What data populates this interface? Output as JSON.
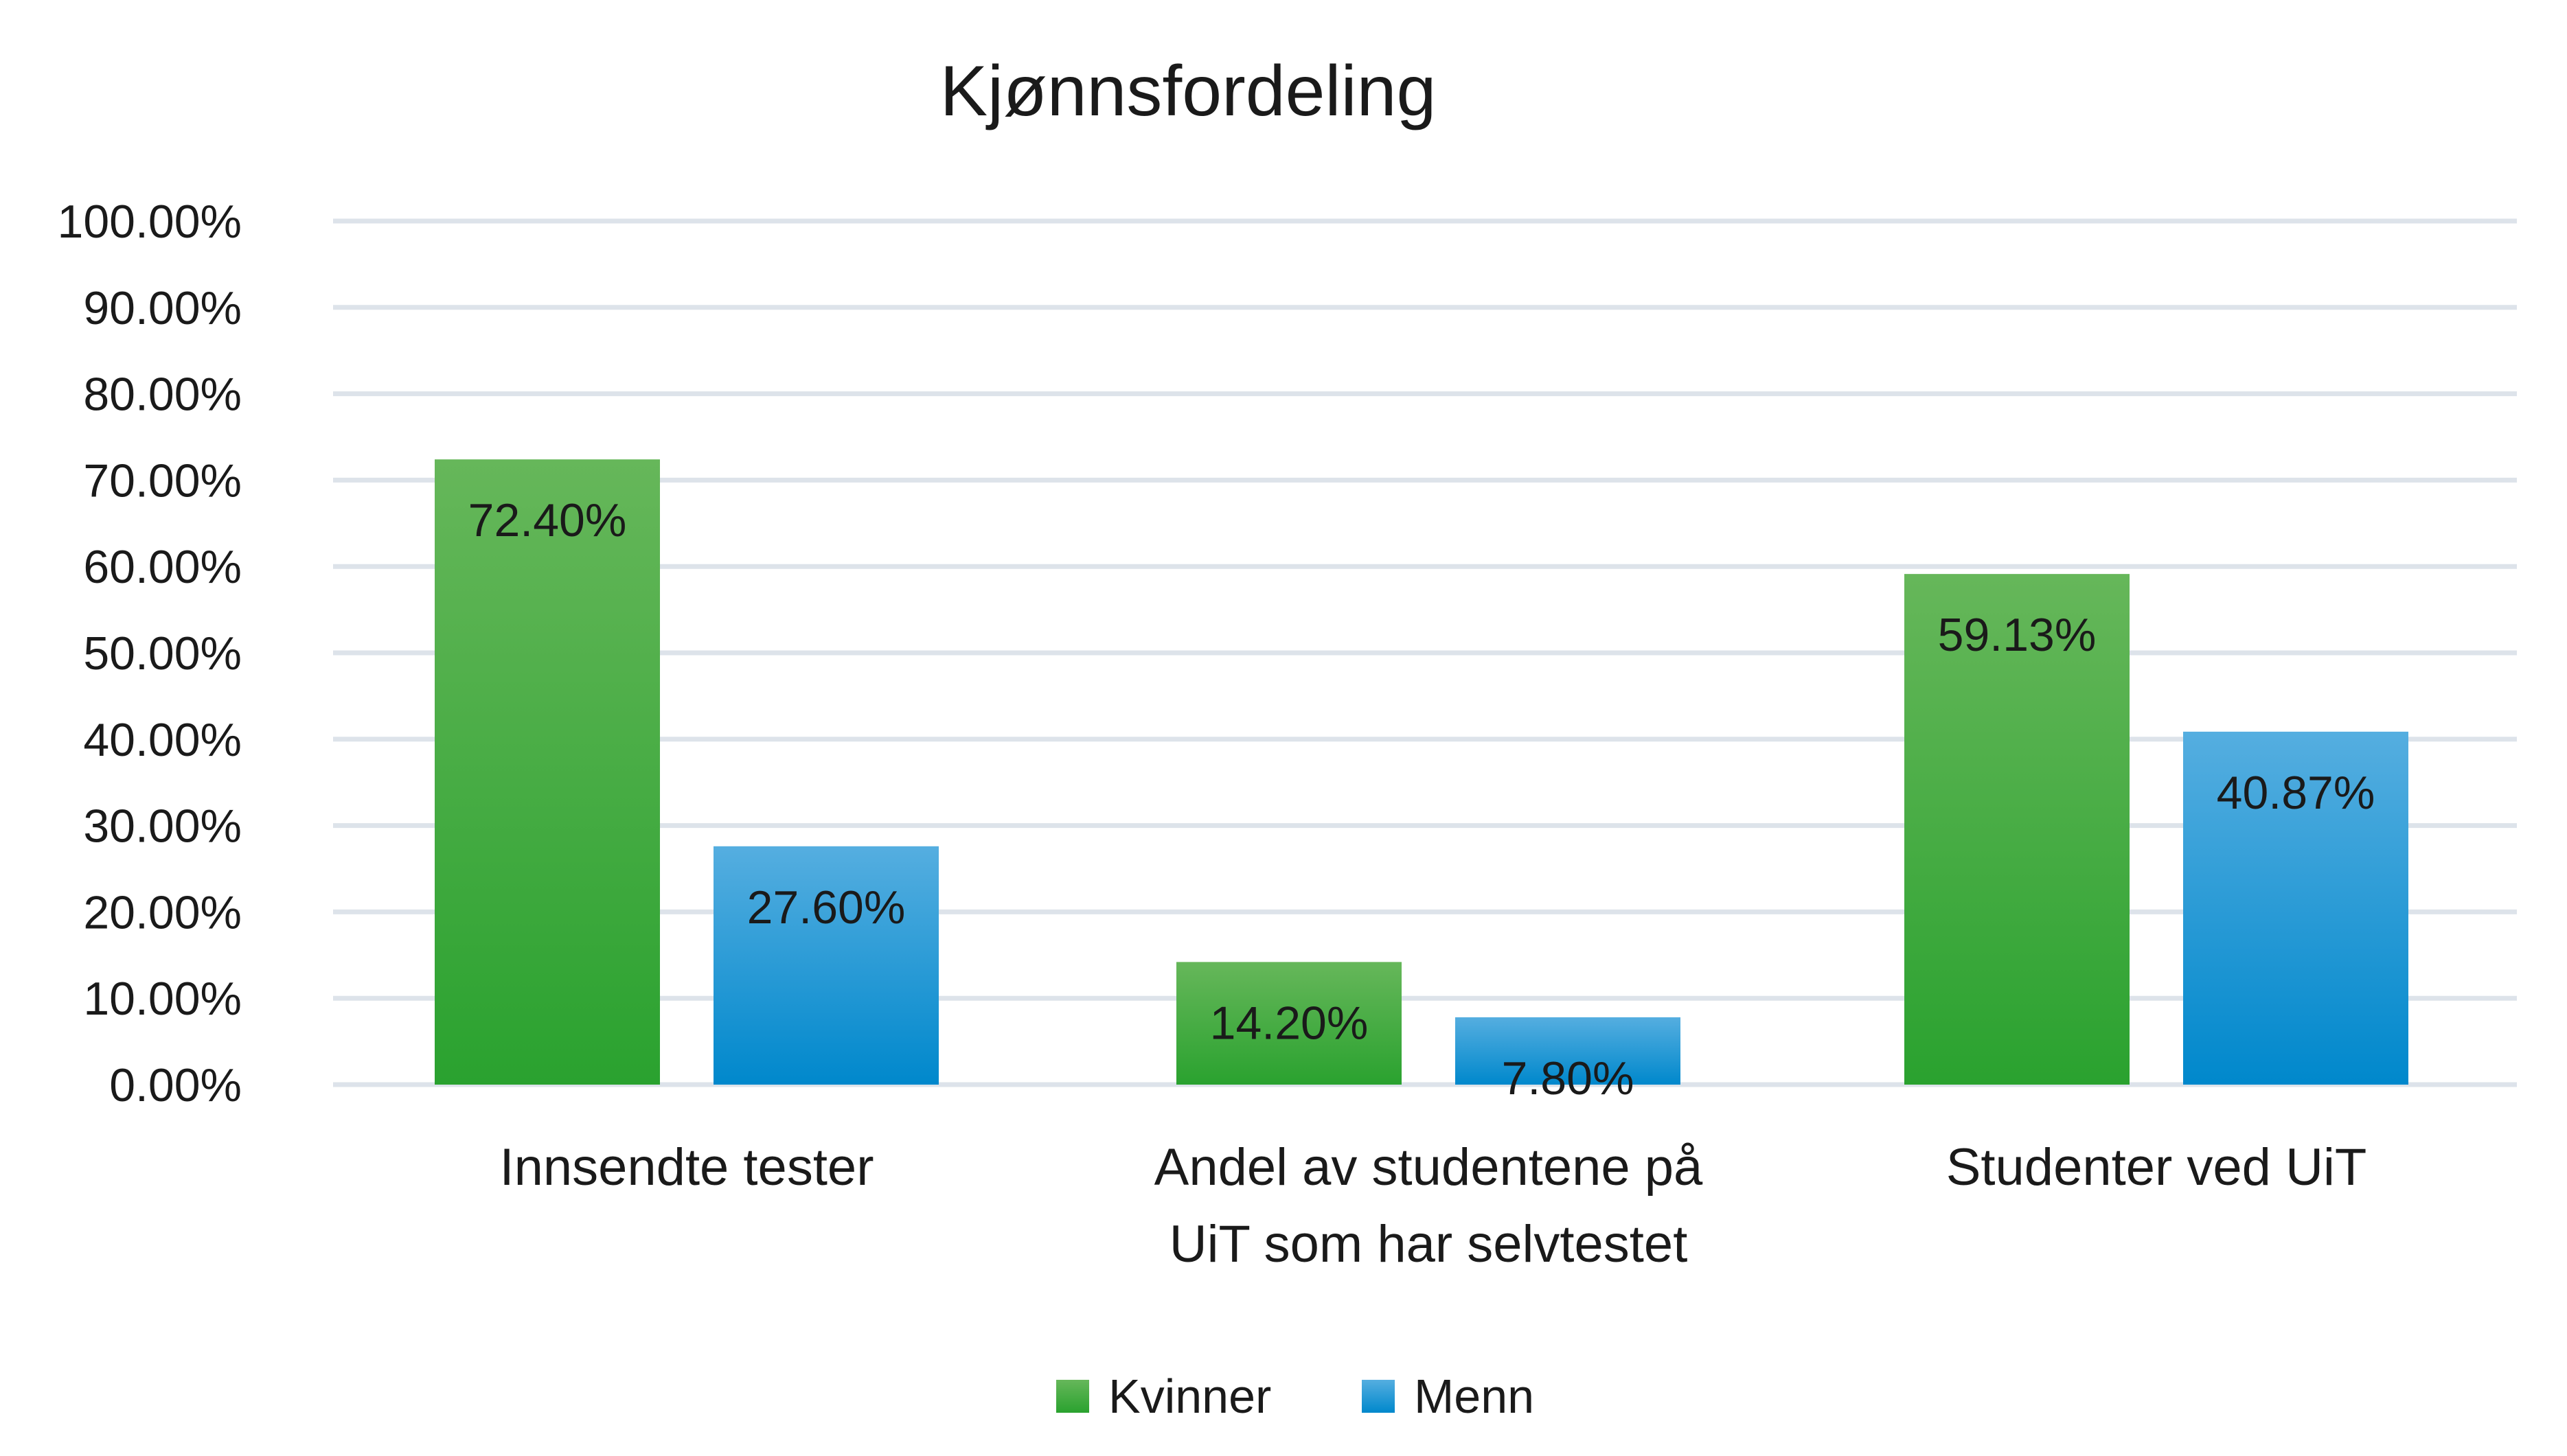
{
  "chart_data": {
    "type": "bar",
    "title": "Kjønnsfordeling",
    "xlabel": "",
    "ylabel": "",
    "ylim": [
      0,
      100
    ],
    "y_ticks": [
      "0.00%",
      "10.00%",
      "20.00%",
      "30.00%",
      "40.00%",
      "50.00%",
      "60.00%",
      "70.00%",
      "80.00%",
      "90.00%",
      "100.00%"
    ],
    "grid": true,
    "legend_position": "bottom",
    "categories": [
      [
        "Innsendte tester"
      ],
      [
        "Andel av studentene på",
        "UiT som har selvtestet"
      ],
      [
        "Studenter ved UiT"
      ]
    ],
    "series": [
      {
        "name": "Kvinner",
        "values": [
          72.4,
          14.2,
          59.13
        ],
        "labels": [
          "72.40%",
          "14.20%",
          "59.13%"
        ],
        "color_top": "#66b75a",
        "color_bottom": "#2aa22f"
      },
      {
        "name": "Menn",
        "values": [
          27.6,
          7.8,
          40.87
        ],
        "labels": [
          "27.60%",
          "7.80%",
          "40.87%"
        ],
        "color_top": "#55aee0",
        "color_bottom": "#0088cc"
      }
    ],
    "gridline_color": "#dde3ea"
  }
}
